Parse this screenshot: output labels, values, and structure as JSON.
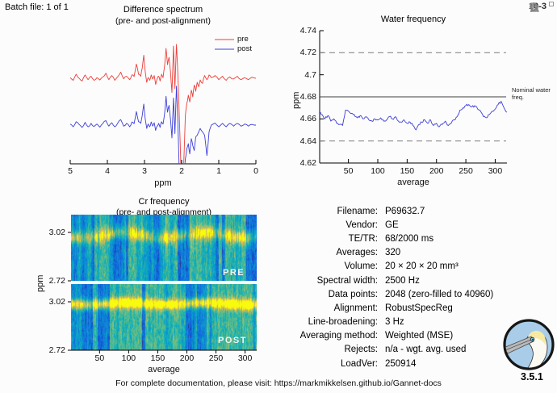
{
  "header": {
    "batch_label": "Batch file: 1 of 1",
    "exponent_label": "10-3"
  },
  "toolbar": {
    "icons": [
      "edit-icon",
      "pan-icon",
      "zoom-in-icon",
      "zoom-out-icon",
      "home-icon"
    ]
  },
  "footer": {
    "doc_text": "For complete documentation, please visit: https://markmikkelsen.github.io/Gannet-docs",
    "version": "3.5.1"
  },
  "logo": {
    "bg": "#a9cde8",
    "ring": "#161616",
    "body": "#fbfaf2",
    "head": "#f6e9a2",
    "beak": "#b9b9b9",
    "beak_line": "#4a4a4a",
    "eye": "#6ec6e8"
  },
  "info_table": {
    "rows": [
      {
        "label": "Filename:",
        "value": "P69632.7"
      },
      {
        "label": "Vendor:",
        "value": "GE"
      },
      {
        "label": "TE/TR:",
        "value": "68/2000 ms"
      },
      {
        "label": "Averages:",
        "value": "320"
      },
      {
        "label": "Volume:",
        "value": "20 × 20 × 20 mm³"
      },
      {
        "label": "Spectral width:",
        "value": "2500 Hz"
      },
      {
        "label": "Data points:",
        "value": "2048 (zero-filled to 40960)"
      },
      {
        "label": "Alignment:",
        "value": "RobustSpecReg"
      },
      {
        "label": "Line-broadening:",
        "value": "3 Hz"
      },
      {
        "label": "Averaging method:",
        "value": "Weighted (MSE)"
      },
      {
        "label": "Rejects:",
        "value": "n/a - wgt. avg. used"
      },
      {
        "label": "LoadVer:",
        "value": "250914"
      }
    ]
  },
  "chart_data": [
    {
      "type": "line",
      "title": "Difference spectrum",
      "subtitle": "(pre- and post-alignment)",
      "xlabel": "ppm",
      "xlim": [
        5,
        0
      ],
      "x_reversed": true,
      "x_ticks": [
        "5",
        "4",
        "3",
        "2",
        "1",
        "0"
      ],
      "units": "arbitrary",
      "legend": [
        {
          "label": "pre",
          "color": "#ed3e38"
        },
        {
          "label": "post",
          "color": "#3c3ed8"
        }
      ],
      "x": [
        5.0,
        4.92,
        4.84,
        4.76,
        4.68,
        4.6,
        4.52,
        4.44,
        4.36,
        4.28,
        4.2,
        4.12,
        4.04,
        3.96,
        3.88,
        3.8,
        3.72,
        3.64,
        3.56,
        3.48,
        3.4,
        3.34,
        3.28,
        3.22,
        3.16,
        3.1,
        3.06,
        3.02,
        2.98,
        2.94,
        2.9,
        2.86,
        2.82,
        2.78,
        2.74,
        2.7,
        2.66,
        2.62,
        2.58,
        2.54,
        2.5,
        2.46,
        2.42,
        2.38,
        2.34,
        2.3,
        2.26,
        2.22,
        2.18,
        2.14,
        2.1,
        2.06,
        2.02,
        1.98,
        1.94,
        1.9,
        1.86,
        1.82,
        1.78,
        1.74,
        1.7,
        1.66,
        1.62,
        1.58,
        1.54,
        1.5,
        1.44,
        1.38,
        1.32,
        1.26,
        1.2,
        1.1,
        1.0,
        0.9,
        0.8,
        0.7,
        0.6,
        0.5,
        0.4,
        0.3,
        0.2,
        0.1,
        0.0
      ],
      "series": [
        {
          "name": "pre",
          "color": "#ed3e38",
          "values": [
            0.02,
            -0.06,
            0.12,
            0.0,
            -0.08,
            0.1,
            -0.04,
            0.06,
            -0.06,
            0.02,
            -0.05,
            0.04,
            0.15,
            -0.04,
            0.08,
            -0.06,
            0.05,
            0.18,
            -0.02,
            0.06,
            -0.04,
            0.1,
            0.05,
            0.42,
            0.12,
            0.06,
            0.3,
            0.68,
            0.2,
            -0.12,
            0.02,
            -0.06,
            0.1,
            -0.02,
            0.08,
            -0.18,
            -0.02,
            0.06,
            -0.08,
            0.12,
            0.02,
            0.35,
            0.88,
            0.4,
            0.62,
            0.2,
            -0.42,
            0.95,
            -0.3,
            1.0,
            0.1,
            -1.2,
            -2.6,
            -3.4,
            -2.4,
            -1.1,
            -0.75,
            -0.5,
            -0.7,
            -0.35,
            -0.55,
            -0.2,
            -0.38,
            -0.12,
            -0.25,
            -0.05,
            -0.15,
            0.08,
            -0.04,
            0.1,
            0.02,
            0.08,
            -0.04,
            0.06,
            -0.06,
            0.04,
            -0.02,
            0.06,
            -0.04,
            0.02,
            -0.04,
            0.03,
            0.0
          ]
        },
        {
          "name": "post",
          "color": "#3c3ed8",
          "values": [
            0.03,
            -0.05,
            0.1,
            0.02,
            -0.07,
            0.08,
            -0.05,
            0.05,
            -0.04,
            0.03,
            -0.06,
            0.05,
            0.13,
            -0.03,
            0.07,
            -0.05,
            0.06,
            0.16,
            -0.03,
            0.05,
            -0.05,
            0.09,
            0.04,
            0.4,
            0.1,
            0.05,
            0.28,
            0.62,
            0.18,
            -0.1,
            0.03,
            -0.05,
            0.09,
            -0.03,
            0.07,
            -0.16,
            -0.03,
            0.05,
            -0.07,
            0.1,
            0.03,
            0.32,
            0.85,
            0.38,
            0.58,
            0.18,
            -0.38,
            0.8,
            -0.25,
            1.15,
            0.05,
            -1.5,
            -3.0,
            -3.5,
            -1.6,
            -1.0,
            -0.7,
            -0.55,
            -0.85,
            -0.4,
            -0.6,
            -0.75,
            -0.35,
            -0.3,
            -0.2,
            -0.1,
            -0.2,
            -0.3,
            -0.9,
            -0.2,
            0.0,
            0.06,
            -0.05,
            0.05,
            -0.05,
            0.05,
            -0.03,
            0.05,
            -0.03,
            0.03,
            -0.03,
            0.02,
            0.0
          ]
        }
      ]
    },
    {
      "type": "line",
      "title": "Water frequency",
      "xlabel": "average",
      "ylabel": "ppm",
      "xlim": [
        1,
        320
      ],
      "ylim": [
        4.62,
        4.74
      ],
      "x_ticks": [
        "50",
        "100",
        "150",
        "200",
        "250",
        "300"
      ],
      "y_ticks": [
        "4.62",
        "4.64",
        "4.66",
        "4.68",
        "4.7",
        "4.72",
        "4.74"
      ],
      "reference_lines": [
        {
          "value": 4.72,
          "style": "dashed"
        },
        {
          "value": 4.68,
          "style": "solid",
          "label": "Nominal water freq."
        },
        {
          "value": 4.64,
          "style": "dashed"
        }
      ],
      "annotation": "Nominal water freq.",
      "x": [
        1,
        5,
        10,
        15,
        20,
        25,
        30,
        35,
        40,
        45,
        50,
        55,
        60,
        65,
        70,
        75,
        80,
        85,
        90,
        95,
        100,
        105,
        110,
        115,
        120,
        125,
        130,
        135,
        140,
        145,
        150,
        155,
        160,
        165,
        170,
        175,
        180,
        185,
        190,
        195,
        200,
        205,
        210,
        215,
        220,
        225,
        230,
        235,
        240,
        245,
        250,
        255,
        260,
        265,
        270,
        275,
        280,
        285,
        290,
        295,
        300,
        305,
        310,
        315,
        320
      ],
      "series": [
        {
          "name": "water frequency",
          "color": "#3c3ed8",
          "values": [
            4.666,
            4.664,
            4.66,
            4.663,
            4.658,
            4.66,
            4.656,
            4.655,
            4.654,
            4.668,
            4.667,
            4.665,
            4.664,
            4.661,
            4.663,
            4.66,
            4.662,
            4.659,
            4.658,
            4.66,
            4.659,
            4.661,
            4.658,
            4.659,
            4.662,
            4.66,
            4.662,
            4.658,
            4.657,
            4.659,
            4.656,
            4.657,
            4.654,
            4.65,
            4.655,
            4.657,
            4.659,
            4.656,
            4.659,
            4.654,
            4.656,
            4.653,
            4.655,
            4.658,
            4.654,
            4.656,
            4.659,
            4.662,
            4.668,
            4.67,
            4.672,
            4.673,
            4.671,
            4.672,
            4.669,
            4.667,
            4.662,
            4.661,
            4.664,
            4.667,
            4.669,
            4.673,
            4.676,
            4.67,
            4.666
          ]
        }
      ]
    },
    {
      "type": "heatmap",
      "title": "Cr frequency",
      "subtitle": "(pre- and post-alignment)",
      "xlabel": "average",
      "ylabel": "ppm",
      "xlim": [
        1,
        320
      ],
      "x_ticks": [
        "50",
        "100",
        "150",
        "200",
        "250",
        "300"
      ],
      "colormap": "parula",
      "band_center_ppm": 3.0,
      "panels": [
        {
          "label": "PRE",
          "y_ticks": [
            "3.02",
            "2.72"
          ],
          "y_range_ppm": [
            3.13,
            2.72
          ]
        },
        {
          "label": "POST",
          "y_ticks": [
            "3.02",
            "2.72"
          ],
          "y_range_ppm": [
            3.13,
            2.72
          ]
        }
      ]
    }
  ]
}
